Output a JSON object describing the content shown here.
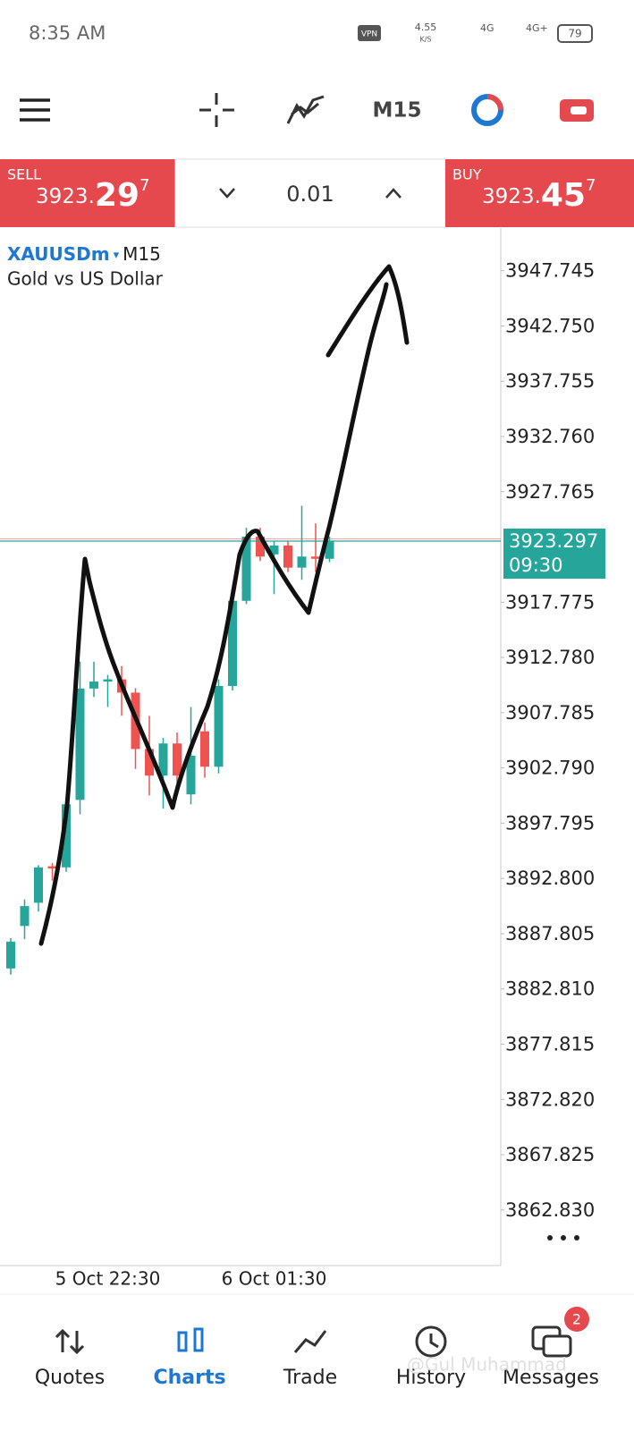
{
  "status_bar": {
    "time": "8:35 AM",
    "vpn": "VPN",
    "speed": "4.55",
    "speed_unit": "K/S",
    "net1": "4G",
    "net2": "4G+",
    "battery": "79"
  },
  "toolbar": {
    "timeframe": "M15"
  },
  "trade_panel": {
    "sell": {
      "label": "SELL",
      "price_small": "3923.",
      "price_big": "29",
      "price_sup": "7"
    },
    "lot": "0.01",
    "buy": {
      "label": "BUY",
      "price_small": "3923.",
      "price_big": "45",
      "price_sup": "7"
    }
  },
  "chart_data": {
    "type": "candlestick",
    "symbol": "XAUUSDm",
    "timeframe": "M15",
    "subtitle": "Gold vs US Dollar",
    "categories": [
      null,
      null,
      null,
      null,
      null,
      null,
      null,
      "5 Oct 22:30",
      null,
      null,
      null,
      null,
      null,
      null,
      null,
      null,
      null,
      null,
      null,
      "6 Oct 01:30",
      null,
      null,
      null,
      null
    ],
    "open": [
      3884.66,
      3888.5,
      3890.6,
      3893.9,
      3893.8,
      3899.9,
      3909.97,
      3910.6,
      3910.8,
      3909.6,
      3904.5,
      3902.1,
      3905.0,
      3900.4,
      3906.1,
      3902.9,
      3910.2,
      3917.9,
      3923.7,
      3922.1,
      3922.9,
      3920.9,
      3921.9,
      3921.7
    ],
    "high": [
      3887.4,
      3890.9,
      3894.0,
      3894.2,
      3899.8,
      3912.4,
      3912.4,
      3911.2,
      3912.0,
      3910.0,
      3907.5,
      3905.5,
      3906.0,
      3908.3,
      3906.9,
      3910.8,
      3918.1,
      3924.5,
      3924.5,
      3923.3,
      3923.3,
      3926.5,
      3924.9,
      3923.7
    ],
    "low": [
      3884.1,
      3887.3,
      3889.8,
      3892.6,
      3893.4,
      3898.6,
      3909.2,
      3908.3,
      3907.5,
      3902.7,
      3900.3,
      3899.1,
      3900.3,
      3899.5,
      3901.9,
      3902.3,
      3909.8,
      3917.6,
      3921.5,
      3918.5,
      3920.5,
      3919.8,
      3920.5,
      3921.4
    ],
    "close": [
      3887.09,
      3890.3,
      3893.8,
      3893.7,
      3899.5,
      3909.97,
      3910.6,
      3910.8,
      3909.6,
      3904.5,
      3902.1,
      3905.0,
      3902.1,
      3903.9,
      3902.9,
      3910.2,
      3917.9,
      3923.7,
      3921.9,
      3922.9,
      3920.9,
      3921.9,
      3921.7,
      3923.3
    ],
    "up_color": "#26a69a",
    "down_color": "#ef5350",
    "ylim": [
      3857.8,
      3951.6
    ],
    "yticks": [
      3947.745,
      {
        "value": 3942.75,
        "label": "3942.750"
      },
      3937.755,
      {
        "value": 3932.76,
        "label": "3932.760"
      },
      3927.765,
      3917.775,
      {
        "value": 3912.78,
        "label": "3912.780"
      },
      3907.785,
      {
        "value": 3902.79,
        "label": "3902.790"
      },
      3897.795,
      {
        "value": 3892.8,
        "label": "3892.800"
      },
      3887.805,
      {
        "value": 3882.81,
        "label": "3882.810"
      },
      3877.815,
      {
        "value": 3872.82,
        "label": "3872.820"
      },
      3867.825,
      {
        "value": 3862.83,
        "label": "3862.830"
      }
    ],
    "last_price": 3923.297,
    "countdown": "09:30"
  },
  "nav": {
    "items": [
      "Quotes",
      "Charts",
      "Trade",
      "History",
      "Messages"
    ],
    "active": 1,
    "badge": "2"
  },
  "watermark": "@Gul Muhammad"
}
